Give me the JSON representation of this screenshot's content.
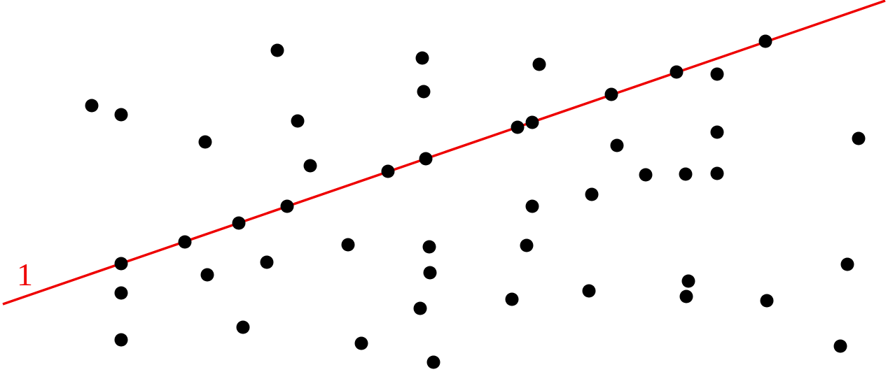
{
  "line_label": "1"
}
